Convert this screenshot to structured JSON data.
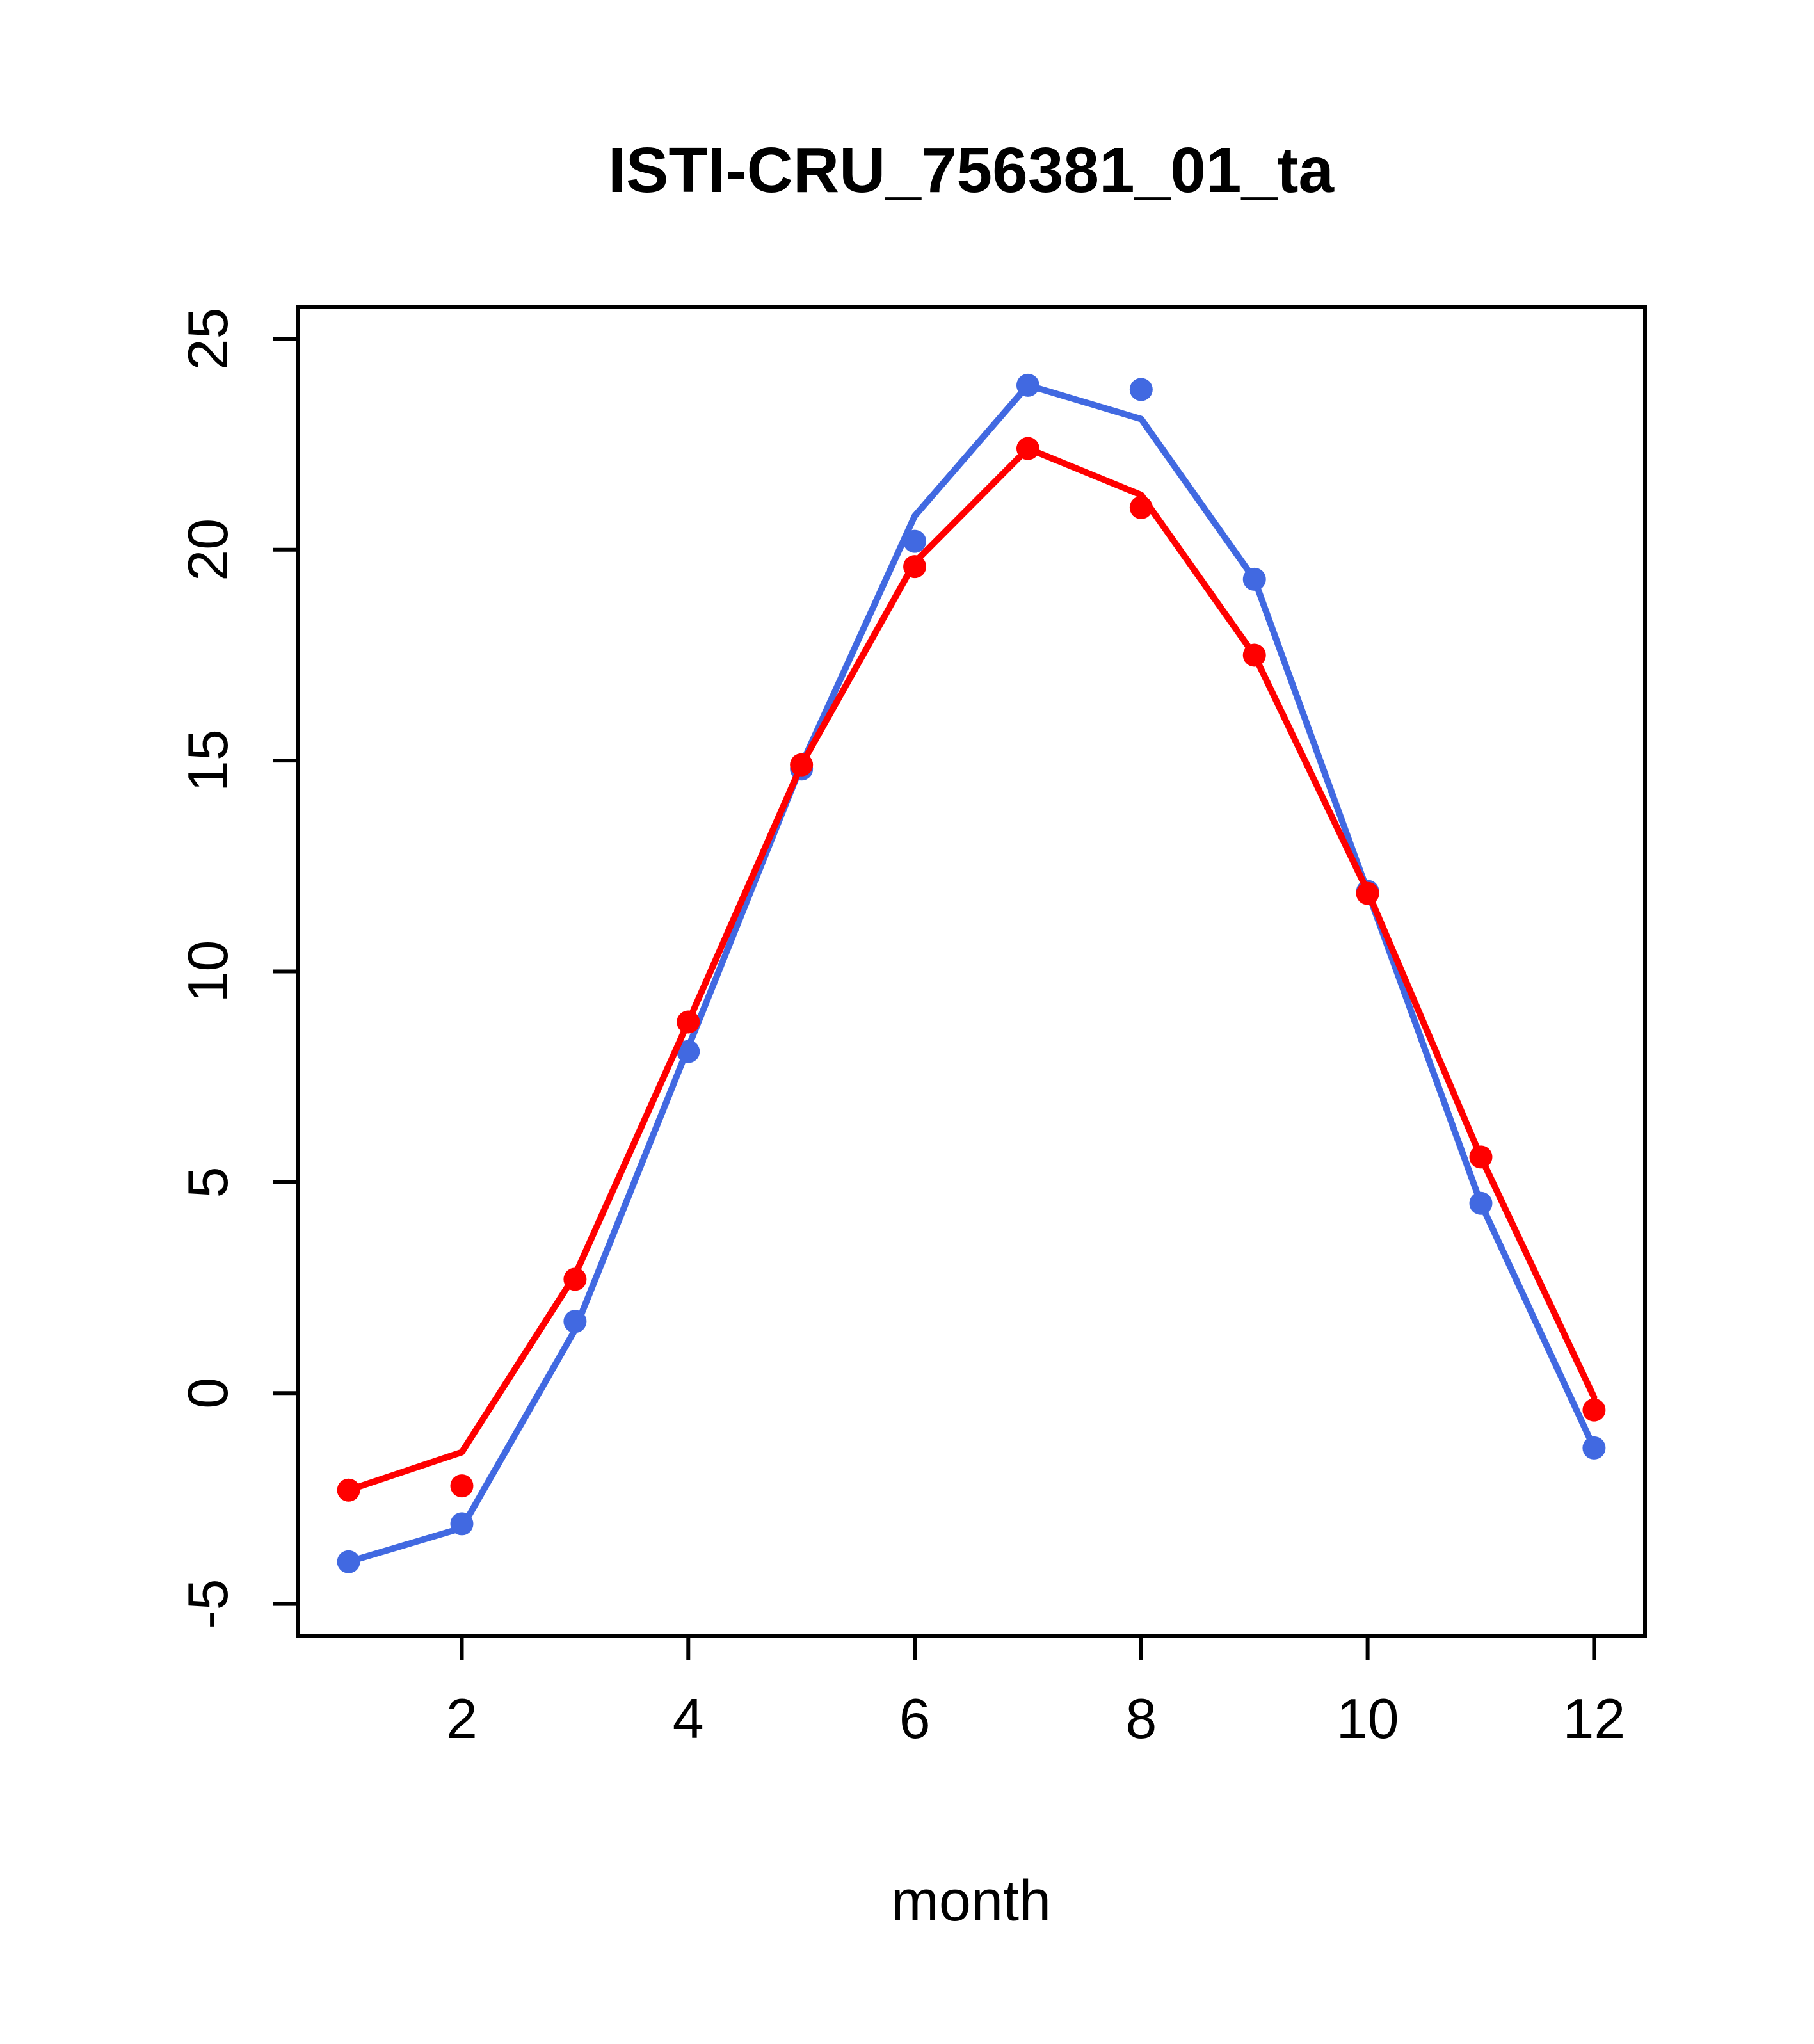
{
  "chart_data": {
    "type": "line",
    "title": "ISTI-CRU_756381_01_ta",
    "xlabel": "month",
    "ylabel": "",
    "grid": false,
    "legend": "none",
    "x": [
      1,
      2,
      3,
      4,
      5,
      6,
      7,
      8,
      9,
      10,
      11,
      12
    ],
    "xlim": [
      0.55,
      12.45
    ],
    "ylim": [
      -5.75,
      25.75
    ],
    "xticks": [
      2,
      4,
      6,
      8,
      10,
      12
    ],
    "yticks": [
      -5,
      0,
      5,
      10,
      15,
      20,
      25
    ],
    "series": [
      {
        "name": "blue-series",
        "color": "#4169E1",
        "line": [
          -4.0,
          -3.2,
          1.5,
          8.2,
          14.9,
          20.8,
          23.9,
          23.1,
          19.3,
          11.9,
          4.5,
          -1.3
        ],
        "points": [
          -4.0,
          -3.1,
          1.7,
          8.1,
          14.8,
          20.2,
          23.9,
          23.8,
          19.3,
          11.9,
          4.5,
          -1.3
        ]
      },
      {
        "name": "red-series",
        "color": "#FF0000",
        "line": [
          -2.3,
          -1.4,
          2.8,
          8.8,
          14.9,
          19.7,
          22.4,
          21.3,
          17.5,
          11.9,
          5.6,
          -0.1
        ],
        "points": [
          -2.3,
          -2.2,
          2.7,
          8.8,
          14.9,
          19.6,
          22.4,
          21.0,
          17.5,
          11.85,
          5.6,
          -0.4
        ]
      }
    ]
  }
}
